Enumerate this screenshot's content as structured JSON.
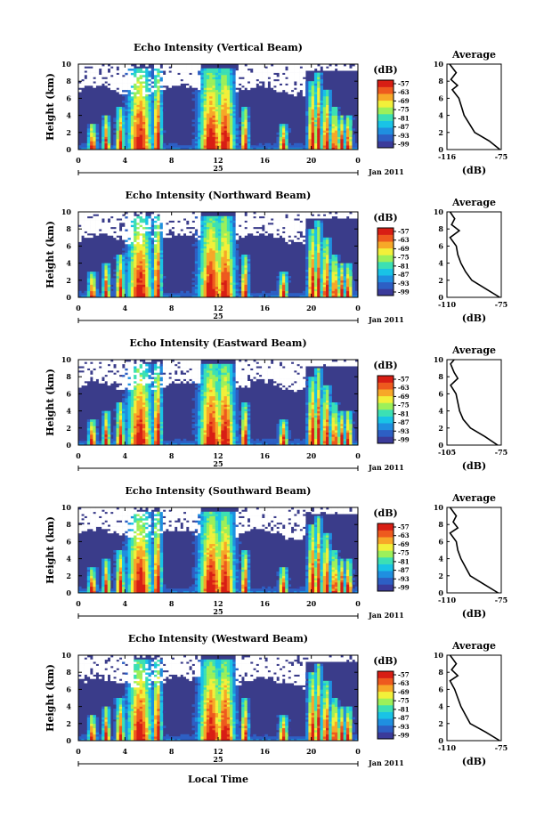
{
  "figure": {
    "xlabel": "Local Time",
    "ylabel": "Height (km)",
    "colorbar_title": "(dB)",
    "colorbar_ticks": [
      "-57",
      "-63",
      "-69",
      "-75",
      "-81",
      "-87",
      "-93",
      "-99"
    ],
    "colorbar_colors": [
      "#3b3b9a",
      "#2d5fc4",
      "#1f8fe0",
      "#19c3e6",
      "#3ce0b4",
      "#9cf05a",
      "#f2f03a",
      "#f7a828",
      "#ee5a1e",
      "#d81e14"
    ],
    "background_color": "#3a3c8a",
    "x_ticks": [
      "0",
      "4",
      "8",
      "12",
      "16",
      "20",
      "0"
    ],
    "y_ticks": [
      "0",
      "2",
      "4",
      "6",
      "8",
      "10"
    ],
    "date_center_label": "25",
    "date_right_label": "Jan 2011",
    "avg_title": "Average",
    "avg_xlabel": "(dB)"
  },
  "chart_data": [
    {
      "type": "heatmap",
      "title": "Echo Intensity (Vertical Beam)",
      "xlim": [
        0,
        24
      ],
      "ylim": [
        0,
        10
      ],
      "clim": [
        -99,
        -57
      ],
      "cells": [],
      "inset": {
        "type": "line",
        "title": "Average",
        "xlim": [
          -116,
          -75
        ],
        "ylim": [
          0,
          10
        ],
        "xticks": [
          "-116",
          "-75"
        ],
        "profile": [
          [
            -76,
            0
          ],
          [
            -84,
            1
          ],
          [
            -95,
            2
          ],
          [
            -99,
            3
          ],
          [
            -103,
            4
          ],
          [
            -105,
            5
          ],
          [
            -107,
            6
          ],
          [
            -112,
            7
          ],
          [
            -108,
            7.5
          ],
          [
            -113,
            8.2
          ],
          [
            -109,
            9
          ],
          [
            -114,
            10
          ]
        ]
      }
    },
    {
      "type": "heatmap",
      "title": "Echo Intensity (Northward Beam)",
      "xlim": [
        0,
        24
      ],
      "ylim": [
        0,
        10
      ],
      "clim": [
        -99,
        -57
      ],
      "cells": [],
      "inset": {
        "type": "line",
        "title": "Average",
        "xlim": [
          -110,
          -75
        ],
        "ylim": [
          0,
          10
        ],
        "xticks": [
          "-110",
          "-75"
        ],
        "profile": [
          [
            -76,
            0
          ],
          [
            -85,
            1
          ],
          [
            -94,
            2
          ],
          [
            -98,
            3
          ],
          [
            -101,
            4
          ],
          [
            -103,
            5
          ],
          [
            -104,
            6
          ],
          [
            -108,
            7
          ],
          [
            -102,
            7.8
          ],
          [
            -107,
            8.5
          ],
          [
            -105,
            9.2
          ],
          [
            -108,
            10
          ]
        ]
      }
    },
    {
      "type": "heatmap",
      "title": "Echo Intensity (Eastward Beam)",
      "xlim": [
        0,
        24
      ],
      "ylim": [
        0,
        10
      ],
      "clim": [
        -99,
        -57
      ],
      "cells": [],
      "inset": {
        "type": "line",
        "title": "Average",
        "xlim": [
          -105,
          -75
        ],
        "ylim": [
          0,
          10
        ],
        "xticks": [
          "-105",
          "-75"
        ],
        "profile": [
          [
            -77,
            0
          ],
          [
            -84,
            1
          ],
          [
            -92,
            2
          ],
          [
            -96,
            3
          ],
          [
            -98,
            4
          ],
          [
            -99,
            5
          ],
          [
            -100,
            6
          ],
          [
            -103,
            7
          ],
          [
            -99,
            7.8
          ],
          [
            -101,
            8.5
          ],
          [
            -103,
            9.5
          ],
          [
            -101,
            10
          ]
        ]
      }
    },
    {
      "type": "heatmap",
      "title": "Echo Intensity (Southward Beam)",
      "xlim": [
        0,
        24
      ],
      "ylim": [
        0,
        10
      ],
      "clim": [
        -99,
        -57
      ],
      "cells": [],
      "inset": {
        "type": "line",
        "title": "Average",
        "xlim": [
          -110,
          -75
        ],
        "ylim": [
          0,
          10
        ],
        "xticks": [
          "-110",
          "-75"
        ],
        "profile": [
          [
            -77,
            0
          ],
          [
            -86,
            1
          ],
          [
            -95,
            2
          ],
          [
            -98,
            3
          ],
          [
            -101,
            4
          ],
          [
            -103,
            5
          ],
          [
            -104,
            6
          ],
          [
            -108,
            7
          ],
          [
            -103,
            7.6
          ],
          [
            -106,
            8.3
          ],
          [
            -104,
            9
          ],
          [
            -108,
            10
          ]
        ]
      }
    },
    {
      "type": "heatmap",
      "title": "Echo Intensity (Westward Beam)",
      "xlim": [
        0,
        24
      ],
      "ylim": [
        0,
        10
      ],
      "clim": [
        -99,
        -57
      ],
      "cells": [],
      "inset": {
        "type": "line",
        "title": "Average",
        "xlim": [
          -110,
          -75
        ],
        "ylim": [
          0,
          10
        ],
        "xticks": [
          "-110",
          "-75"
        ],
        "profile": [
          [
            -76,
            0
          ],
          [
            -85,
            1
          ],
          [
            -95,
            2
          ],
          [
            -98,
            3
          ],
          [
            -101,
            4
          ],
          [
            -103,
            5
          ],
          [
            -105,
            6
          ],
          [
            -108,
            7
          ],
          [
            -103,
            7.6
          ],
          [
            -107,
            8.3
          ],
          [
            -104,
            9
          ],
          [
            -108,
            10
          ]
        ]
      }
    }
  ]
}
